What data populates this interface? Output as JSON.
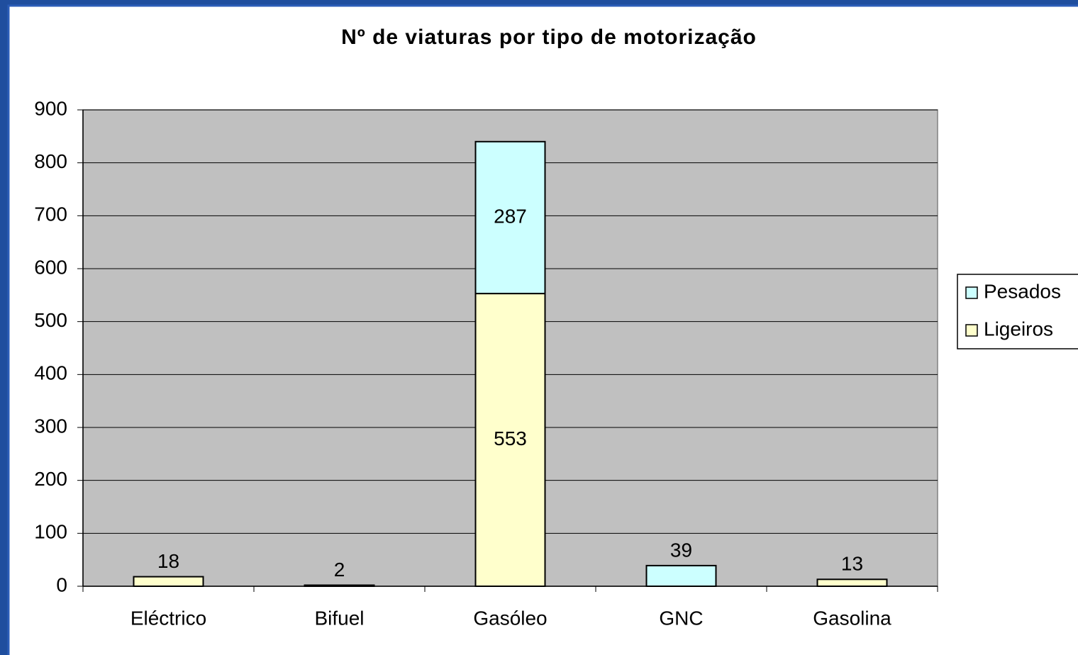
{
  "chart_data": {
    "type": "stacked_bar",
    "title": "Nº de viaturas por tipo de motorização",
    "categories": [
      "Eléctrico",
      "Bifuel",
      "Gasóleo",
      "GNC",
      "Gasolina"
    ],
    "series": [
      {
        "name": "Ligeiros",
        "color": "#ffffcc",
        "values": [
          18,
          2,
          553,
          null,
          13
        ]
      },
      {
        "name": "Pesados",
        "color": "#ccffff",
        "values": [
          null,
          null,
          287,
          39,
          null
        ]
      }
    ],
    "ylim": [
      0,
      900
    ],
    "yticks": [
      0,
      100,
      200,
      300,
      400,
      500,
      600,
      700,
      800,
      900
    ],
    "grid": true,
    "legend": "right"
  }
}
